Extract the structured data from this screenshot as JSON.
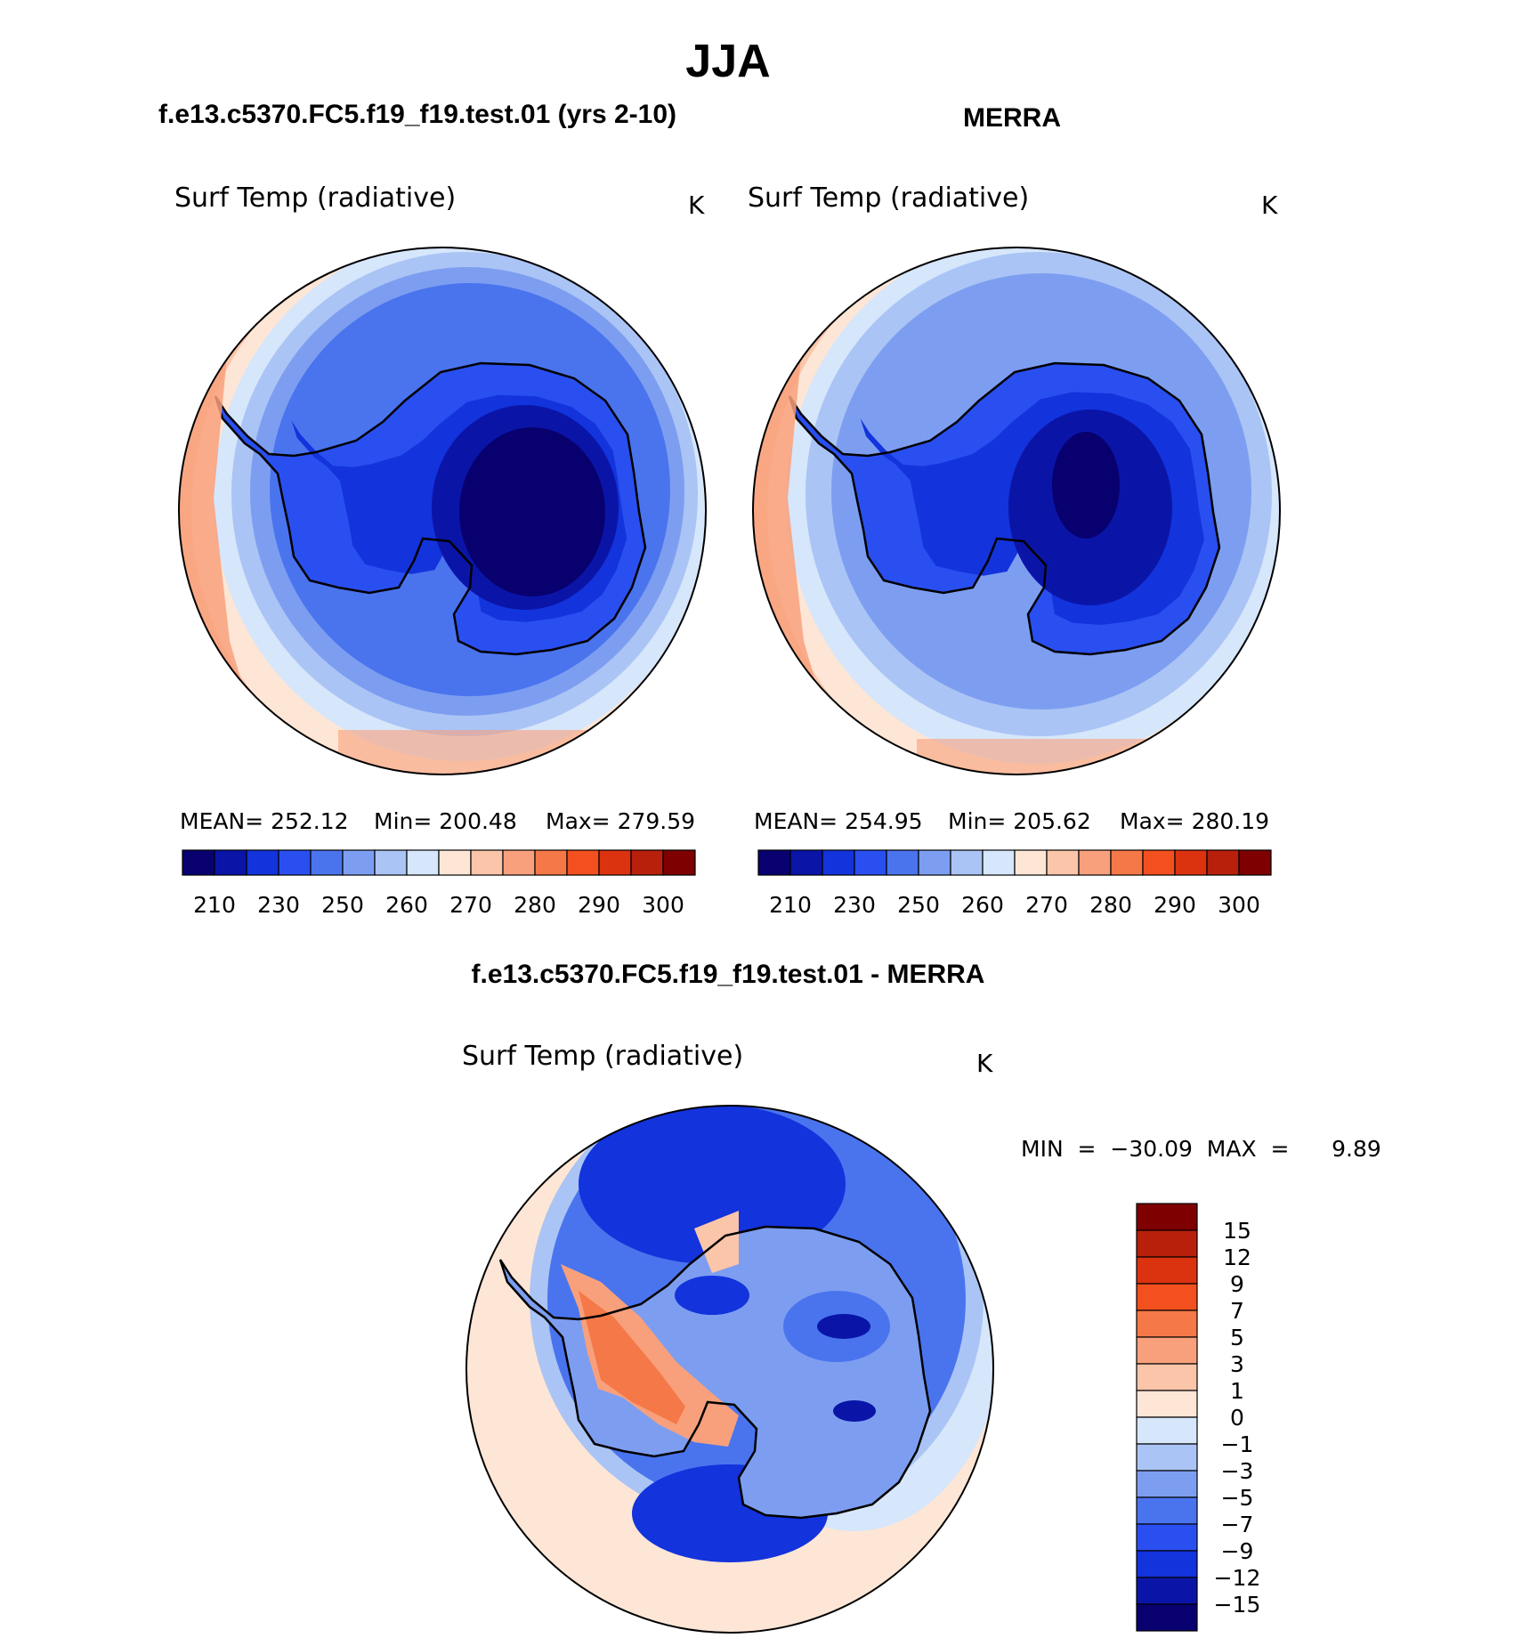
{
  "figure": {
    "title": "JJA"
  },
  "panels": [
    {
      "id": "model",
      "header": "f.e13.c5370.FC5.f19_f19.test.01 (yrs 2-10)",
      "variable": "Surf Temp (radiative)",
      "units": "K",
      "stats": {
        "mean": "MEAN=  252.12",
        "min": "Min=  200.48",
        "max": "Max=  279.59"
      },
      "colorbar_labels": [
        "210",
        "230",
        "250",
        "260",
        "270",
        "280",
        "290",
        "300"
      ]
    },
    {
      "id": "obs",
      "header": "MERRA",
      "variable": "Surf Temp (radiative)",
      "units": "K",
      "stats": {
        "mean": "MEAN=  254.95",
        "min": "Min=  205.62",
        "max": "Max=  280.19"
      },
      "colorbar_labels": [
        "210",
        "230",
        "250",
        "260",
        "270",
        "280",
        "290",
        "300"
      ]
    }
  ],
  "difference": {
    "header": "f.e13.c5370.FC5.f19_f19.test.01 - MERRA",
    "variable": "Surf Temp (radiative)",
    "units": "K",
    "minmax": "MIN  =  −30.09  MAX  =      9.89",
    "colorbar_labels": [
      "15",
      "12",
      "9",
      "7",
      "5",
      "3",
      "1",
      "0",
      "−1",
      "−3",
      "−5",
      "−7",
      "−9",
      "−12",
      "−15"
    ]
  },
  "colors": {
    "abs_scale": [
      "#08006f",
      "#0a15a8",
      "#1333dc",
      "#2a4ff0",
      "#4a74ee",
      "#7d9ef0",
      "#aac4f5",
      "#d6e6fb",
      "#fde6d5",
      "#fbc5aa",
      "#f8a07c",
      "#f57848",
      "#f2501e",
      "#db3210",
      "#b8200c",
      "#7f0000"
    ],
    "diff_scale": [
      "#7f0000",
      "#b8200c",
      "#db3210",
      "#f2501e",
      "#f57848",
      "#f8a07c",
      "#fbc5aa",
      "#fde6d5",
      "#d6e6fb",
      "#aac4f5",
      "#7d9ef0",
      "#4a74ee",
      "#2a4ff0",
      "#1333dc",
      "#0a15a8",
      "#08006f"
    ]
  }
}
